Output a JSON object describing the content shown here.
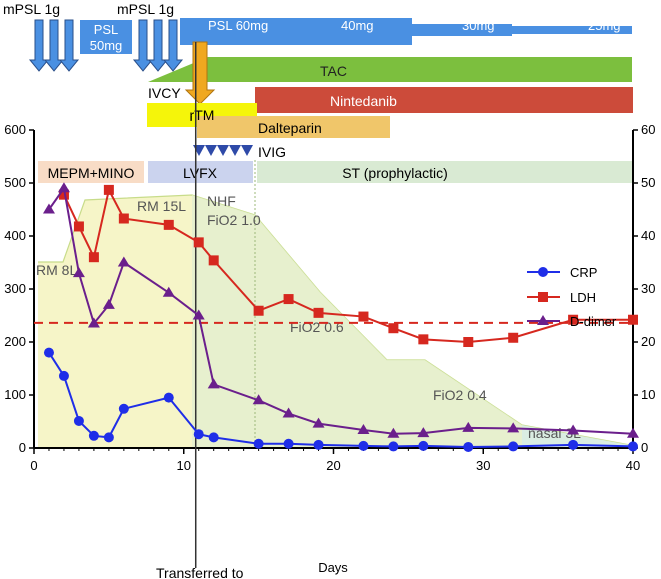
{
  "timeline": {
    "pulse_labels": [
      "mPSL 1g",
      "mPSL 1g"
    ],
    "psl_50": "PSL\n50mg",
    "psl_steps": [
      "PSL 60mg",
      "40mg",
      "30mg",
      "25mg"
    ],
    "tac": "TAC",
    "ivcy": "IVCY",
    "rtm": "rTM",
    "nintedanib": "Nintedanib",
    "dalteparin": "Dalteparin",
    "ivig": "IVIG",
    "mepm_mino": "MEPM+MINO",
    "lvfx": "LVFX",
    "st": "ST (prophylactic)"
  },
  "oxygen_labels": [
    "RM 8L",
    "RM 15L",
    "NHF\nFiO2 1.0",
    "FiO2 0.6",
    "FiO2 0.4",
    "nasal 3L"
  ],
  "annotation": "Transferred to",
  "colors": {
    "crp": "#1f2ee8",
    "ldh": "#d6281f",
    "ddimer": "#6b1f8c",
    "psl": "#4a90e2",
    "tac": "#7cbf3e",
    "nintedanib": "#cc4b3a",
    "rtm": "#f5f50a",
    "dalteparin": "#f0c66a",
    "ivig": "#2e4aa8",
    "mepm": "#f8dcc6",
    "lvfx": "#cbd3ee",
    "st": "#d9ead3",
    "arrow_orange": "#f0a820"
  },
  "chart_data": {
    "type": "line",
    "xlabel": "Days",
    "ylim_left": [
      0,
      600
    ],
    "ylim_right": [
      0,
      60
    ],
    "xlim": [
      0,
      40
    ],
    "x_ticks": [
      0,
      10,
      20,
      30,
      40
    ],
    "y_ticks_left": [
      0,
      100,
      200,
      300,
      400,
      500,
      600
    ],
    "y_ticks_right": [
      0,
      10,
      20,
      30,
      40,
      50,
      60
    ],
    "legend_position": "right",
    "ldh_reference_line": 236,
    "transfer_day": 10.8,
    "series": [
      {
        "name": "CRP",
        "marker": "circle",
        "x": [
          1,
          2,
          3,
          4,
          5,
          6,
          9,
          11,
          12,
          15,
          17,
          19,
          22,
          24,
          26,
          29,
          32,
          36,
          40
        ],
        "y": [
          18.0,
          13.6,
          5.1,
          2.3,
          2.0,
          7.4,
          9.5,
          2.6,
          2.0,
          0.8,
          0.8,
          0.6,
          0.4,
          0.3,
          0.4,
          0.2,
          0.3,
          0.6,
          0.3
        ]
      },
      {
        "name": "LDH",
        "marker": "square",
        "x": [
          2,
          3,
          4,
          5,
          6,
          9,
          11,
          12,
          15,
          17,
          19,
          22,
          24,
          26,
          29,
          32,
          36,
          40
        ],
        "y": [
          478,
          418,
          360,
          487,
          433,
          421,
          388,
          354,
          259,
          281,
          255,
          248,
          226,
          205,
          200,
          208,
          242,
          242
        ]
      },
      {
        "name": "D-dimer",
        "marker": "triangle",
        "x": [
          1,
          2,
          3,
          4,
          5,
          6,
          9,
          11,
          12,
          15,
          17,
          19,
          22,
          24,
          26,
          29,
          32,
          36,
          40
        ],
        "y": [
          45.0,
          49.0,
          33.0,
          23.5,
          27.0,
          35.0,
          29.3,
          25.0,
          12.0,
          9.0,
          6.5,
          4.6,
          3.4,
          2.7,
          2.8,
          3.8,
          3.7,
          3.3,
          2.7
        ]
      }
    ]
  }
}
